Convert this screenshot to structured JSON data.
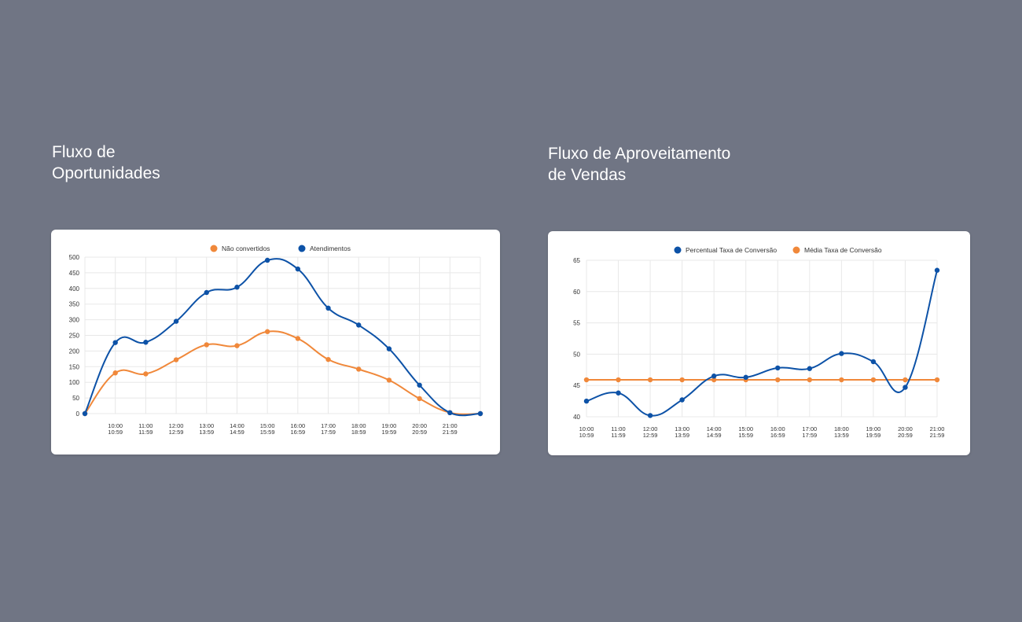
{
  "titles": {
    "left": [
      "Fluxo de",
      "Oportunidades"
    ],
    "right": [
      "Fluxo de Aproveitamento",
      "de Vendas"
    ]
  },
  "chart_data": [
    {
      "type": "line",
      "title": "Fluxo de Oportunidades",
      "categories": [
        "",
        "10:00 10:59",
        "11:00 11:59",
        "12:00 12:59",
        "13:00 13:59",
        "14:00 14:59",
        "15:00 15:59",
        "16:00 16:59",
        "17:00 17:59",
        "18:00 18:59",
        "19:00 19:59",
        "20:00 20:59",
        "21:00 21:59",
        ""
      ],
      "tick_labels": [
        [
          "",
          ""
        ],
        [
          "10:00",
          "10:59"
        ],
        [
          "11:00",
          "11:59"
        ],
        [
          "12:00",
          "12:59"
        ],
        [
          "13:00",
          "13:59"
        ],
        [
          "14:00",
          "14:59"
        ],
        [
          "15:00",
          "15:59"
        ],
        [
          "16:00",
          "16:59"
        ],
        [
          "17:00",
          "17:59"
        ],
        [
          "18:00",
          "18:59"
        ],
        [
          "19:00",
          "19:59"
        ],
        [
          "20:00",
          "20:59"
        ],
        [
          "21:00",
          "21:59"
        ],
        [
          "",
          ""
        ]
      ],
      "ylim": [
        0,
        500
      ],
      "yticks": [
        0,
        50,
        100,
        150,
        200,
        250,
        300,
        350,
        400,
        450,
        500
      ],
      "grid": true,
      "legend": "top-center",
      "series": [
        {
          "name": "Não convertidos",
          "color": "#f0883a",
          "values": [
            0,
            130,
            127,
            172,
            220,
            217,
            262,
            240,
            173,
            142,
            107,
            48,
            3,
            0
          ]
        },
        {
          "name": "Atendimentos",
          "color": "#0d52a7",
          "values": [
            0,
            227,
            228,
            295,
            387,
            404,
            490,
            462,
            337,
            283,
            207,
            91,
            3,
            0
          ]
        }
      ]
    },
    {
      "type": "line",
      "title": "Fluxo de Aproveitamento de Vendas",
      "categories": [
        "10:00 10:59",
        "11:00 11:59",
        "12:00 12:59",
        "13:00 13:59",
        "14:00 14:59",
        "15:00 15:59",
        "16:00 16:59",
        "17:00 17:59",
        "18:00 13:59",
        "19:00 19:59",
        "20:00 20:59",
        "21:00 21:59"
      ],
      "tick_labels": [
        [
          "10:00",
          "10:59"
        ],
        [
          "11:00",
          "11:59"
        ],
        [
          "12:00",
          "12:59"
        ],
        [
          "13:00",
          "13:59"
        ],
        [
          "14:00",
          "14:59"
        ],
        [
          "15:00",
          "15:59"
        ],
        [
          "16:00",
          "16:59"
        ],
        [
          "17:00",
          "17:59"
        ],
        [
          "18:00",
          "13:59"
        ],
        [
          "19:00",
          "19:59"
        ],
        [
          "20:00",
          "20:59"
        ],
        [
          "21:00",
          "21:59"
        ]
      ],
      "ylim": [
        40,
        65
      ],
      "yticks": [
        40,
        45,
        50,
        55,
        60,
        65
      ],
      "grid": true,
      "legend": "top-center",
      "series": [
        {
          "name": "Percentual Taxa de Conversão",
          "color": "#0d52a7",
          "values": [
            42.5,
            43.8,
            40.2,
            42.7,
            46.5,
            46.3,
            47.8,
            47.7,
            50.1,
            48.8,
            44.7,
            63.4
          ]
        },
        {
          "name": "Média Taxa de Conversão",
          "color": "#f0883a",
          "values": [
            45.9,
            45.9,
            45.9,
            45.9,
            45.9,
            45.9,
            45.9,
            45.9,
            45.9,
            45.9,
            45.9,
            45.9
          ]
        }
      ]
    }
  ]
}
